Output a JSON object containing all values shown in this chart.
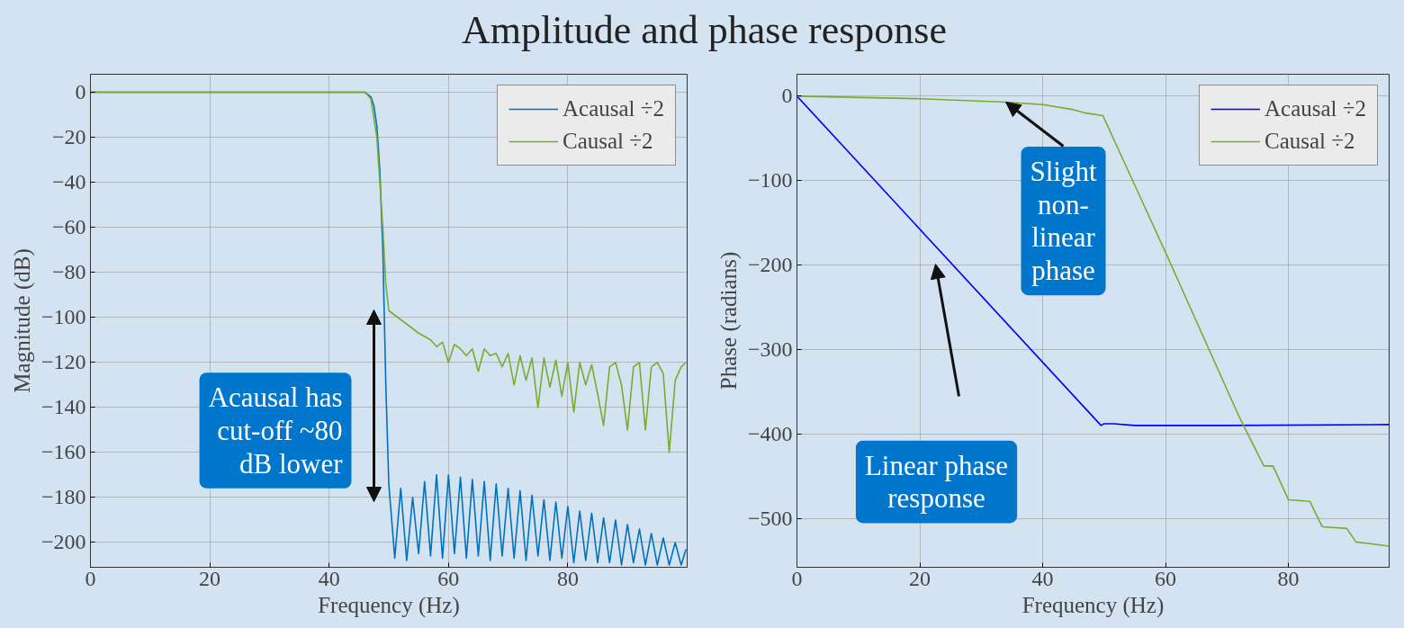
{
  "chart_data": [
    {
      "type": "line",
      "title": "Amplitude and phase response",
      "xlabel": "Frequency (Hz)",
      "ylabel": "Magnitude (dB)",
      "xlim": [
        0,
        100
      ],
      "ylim": [
        -211,
        8
      ],
      "xticks": [
        0,
        20,
        40,
        60,
        80
      ],
      "yticks": [
        -200,
        -180,
        -160,
        -140,
        -120,
        -100,
        -80,
        -60,
        -40,
        -20,
        0
      ],
      "grid": true,
      "legend": "top right",
      "series": [
        {
          "name": "Acausal ÷2",
          "color": "#0072bd",
          "x": [
            0,
            40,
            46,
            47,
            47.5,
            48,
            48.5,
            49,
            49.5,
            50,
            51,
            52,
            53,
            54,
            55,
            56,
            57,
            58,
            59,
            60,
            61,
            62,
            63,
            64,
            65,
            66,
            67,
            68,
            69,
            70,
            71,
            72,
            73,
            74,
            75,
            76,
            77,
            78,
            79,
            80,
            81,
            82,
            83,
            84,
            85,
            86,
            87,
            88,
            89,
            90,
            91,
            92,
            93,
            94,
            95,
            96,
            97,
            98,
            99,
            99.8
          ],
          "values": [
            0,
            0,
            0,
            -2,
            -6,
            -15,
            -35,
            -70,
            -130,
            -174,
            -207,
            -176,
            -208,
            -180,
            -205,
            -173,
            -206,
            -170,
            -207,
            -170,
            -205,
            -171,
            -207,
            -172,
            -206,
            -173,
            -208,
            -174,
            -206,
            -176,
            -207,
            -177,
            -208,
            -179,
            -206,
            -181,
            -208,
            -182,
            -207,
            -184,
            -209,
            -186,
            -208,
            -187,
            -209,
            -189,
            -209,
            -190,
            -210,
            -192,
            -209,
            -194,
            -210,
            -196,
            -210,
            -198,
            -210,
            -200,
            -210,
            -203
          ]
        },
        {
          "name": "Causal ÷2",
          "color": "#77ac30",
          "x": [
            0,
            40,
            46,
            47,
            48,
            49,
            49.5,
            50,
            51,
            53,
            55,
            57,
            58,
            59,
            60,
            61,
            62,
            63,
            64,
            65,
            66,
            67,
            68,
            69,
            70,
            71,
            72,
            73,
            74,
            75,
            76,
            77,
            78,
            79,
            80,
            81,
            82,
            83,
            84,
            85,
            86,
            87,
            88,
            89,
            90,
            91,
            92,
            93,
            94,
            95,
            96,
            97,
            98,
            99,
            99.8
          ],
          "values": [
            0,
            0,
            0,
            -3,
            -20,
            -60,
            -85,
            -97,
            -99,
            -103,
            -107,
            -110,
            -113,
            -111,
            -120,
            -112,
            -114,
            -117,
            -114,
            -124,
            -114,
            -117,
            -116,
            -122,
            -116,
            -130,
            -117,
            -128,
            -118,
            -140,
            -118,
            -131,
            -119,
            -135,
            -120,
            -142,
            -120,
            -130,
            -121,
            -134,
            -148,
            -122,
            -120,
            -130,
            -150,
            -122,
            -120,
            -150,
            -122,
            -120,
            -125,
            -160,
            -128,
            -122,
            -120
          ]
        }
      ],
      "annotations": [
        "Acausal has\ncut-off ~80\ndB lower"
      ]
    },
    {
      "type": "line",
      "xlabel": "Frequency (Hz)",
      "ylabel": "Phase (radians)",
      "xlim": [
        0,
        96.4
      ],
      "ylim": [
        -558,
        26
      ],
      "xticks": [
        0,
        20,
        40,
        60,
        80
      ],
      "yticks": [
        -500,
        -400,
        -300,
        -200,
        -100,
        0
      ],
      "grid": true,
      "legend": "top right",
      "series": [
        {
          "name": "Acausal ÷2",
          "color": "#0000ff",
          "x": [
            0,
            49.5,
            50,
            51.5,
            55,
            70,
            96.4
          ],
          "values": [
            0,
            -390,
            -388,
            -388,
            -390,
            -390,
            -389
          ]
        },
        {
          "name": "Causal ÷2",
          "color": "#77ac30",
          "x": [
            0,
            20,
            34,
            40,
            45,
            47,
            49.8,
            60,
            72,
            76,
            77.5,
            80,
            83.5,
            85.5,
            89.5,
            91,
            96.4
          ],
          "values": [
            0,
            -3,
            -7,
            -10,
            -16,
            -20,
            -23,
            -185,
            -380,
            -438,
            -438,
            -478,
            -480,
            -510,
            -512,
            -528,
            -533
          ]
        }
      ],
      "annotations": [
        {
          "text": "Slight\nnon-\nlinear\nphase",
          "x": 34,
          "y": -7
        },
        "Linear phase\nresponse"
      ]
    }
  ]
}
